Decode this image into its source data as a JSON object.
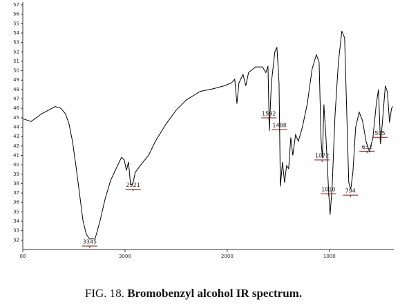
{
  "chart_data": {
    "type": "line",
    "caption_prefix": "FIG. 18.",
    "caption_title": "Bromobenzyl alcohol IR spectrum.",
    "color": "#000000",
    "x": [
      4000,
      3919,
      3818,
      3682,
      3628,
      3581,
      3547,
      3514,
      3480,
      3446,
      3412,
      3378,
      3345,
      3291,
      3243,
      3196,
      3142,
      3074,
      3034,
      3007,
      2986,
      2966,
      2946,
      2926,
      2899,
      2838,
      2770,
      2703,
      2601,
      2500,
      2399,
      2264,
      2128,
      2027,
      1959,
      1926,
      1905,
      1885,
      1845,
      1818,
      1791,
      1723,
      1655,
      1622,
      1601,
      1588,
      1568,
      1534,
      1514,
      1493,
      1480,
      1459,
      1439,
      1419,
      1399,
      1378,
      1358,
      1331,
      1304,
      1264,
      1216,
      1169,
      1128,
      1101,
      1081,
      1068,
      1054,
      1034,
      1007,
      993,
      973,
      946,
      912,
      878,
      851,
      831,
      811,
      791,
      770,
      743,
      709,
      676,
      642,
      608,
      574,
      541,
      520,
      500,
      480,
      453,
      432,
      412,
      392,
      378
    ],
    "values": [
      44.9,
      44.6,
      45.4,
      46.2,
      46.0,
      45.4,
      44.3,
      42.5,
      39.9,
      37.0,
      34.1,
      32.6,
      32.1,
      32.2,
      34.1,
      36.3,
      38.3,
      39.9,
      40.8,
      40.5,
      39.4,
      40.3,
      37.9,
      37.9,
      39.2,
      40.1,
      41.0,
      42.5,
      44.3,
      45.8,
      46.9,
      47.8,
      48.1,
      48.4,
      48.7,
      49.1,
      46.5,
      48.7,
      49.6,
      48.4,
      49.8,
      50.4,
      50.4,
      49.8,
      50.5,
      43.6,
      48.7,
      52.0,
      52.5,
      48.7,
      37.7,
      40.3,
      38.1,
      39.9,
      39.6,
      42.9,
      41.0,
      43.2,
      42.5,
      44.0,
      46.5,
      50.2,
      51.7,
      50.9,
      42.5,
      40.7,
      46.4,
      42.9,
      37.0,
      34.7,
      37.7,
      45.1,
      50.9,
      54.2,
      53.5,
      45.8,
      38.1,
      37.4,
      39.2,
      44.0,
      45.6,
      44.7,
      42.5,
      41.4,
      42.9,
      46.5,
      48.0,
      42.2,
      44.7,
      48.4,
      47.7,
      44.5,
      46.0,
      46.2
    ],
    "peak_labels": [
      3345,
      2921,
      1592,
      1488,
      1072,
      1010,
      794,
      632,
      505
    ],
    "xlim": [
      4000,
      370
    ],
    "xticks": [
      {
        "value": 4000,
        "label": "00"
      },
      3000,
      2000,
      1000
    ],
    "ylim": [
      31,
      57
    ],
    "yticks": [
      32,
      33,
      34,
      35,
      36,
      37,
      38,
      39,
      40,
      41,
      42,
      43,
      44,
      45,
      46,
      47,
      48,
      49,
      50,
      51,
      52,
      53,
      54,
      55,
      56,
      57
    ]
  }
}
